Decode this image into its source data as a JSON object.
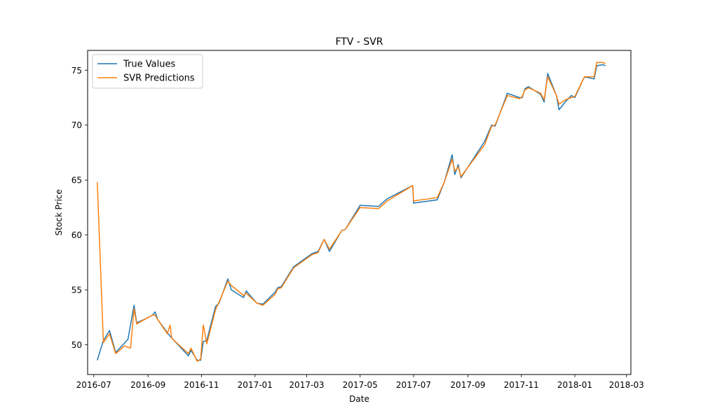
{
  "chart_data": {
    "type": "line",
    "title": "FTV - SVR",
    "xlabel": "Date",
    "ylabel": "Stock Price",
    "xlim": [
      "2016-06-24",
      "2018-03-06"
    ],
    "ylim": [
      47.3,
      76.8
    ],
    "x_ticks": [
      {
        "date": "2016-07-01",
        "label": "2016-07"
      },
      {
        "date": "2016-09-01",
        "label": "2016-09"
      },
      {
        "date": "2016-11-01",
        "label": "2016-11"
      },
      {
        "date": "2017-01-01",
        "label": "2017-01"
      },
      {
        "date": "2017-03-01",
        "label": "2017-03"
      },
      {
        "date": "2017-05-01",
        "label": "2017-05"
      },
      {
        "date": "2017-07-01",
        "label": "2017-07"
      },
      {
        "date": "2017-09-01",
        "label": "2017-09"
      },
      {
        "date": "2017-11-01",
        "label": "2017-11"
      },
      {
        "date": "2018-01-01",
        "label": "2018-01"
      },
      {
        "date": "2018-03-01",
        "label": "2018-03"
      }
    ],
    "y_ticks": [
      50,
      55,
      60,
      65,
      70,
      75
    ],
    "legend": "top-left",
    "grid": false,
    "series": [
      {
        "name": "True Values",
        "color": "#1f77b4",
        "points": [
          [
            "2016-07-05",
            48.6
          ],
          [
            "2016-07-12",
            50.4
          ],
          [
            "2016-07-19",
            51.3
          ],
          [
            "2016-07-26",
            49.3
          ],
          [
            "2016-08-09",
            50.5
          ],
          [
            "2016-08-16",
            53.6
          ],
          [
            "2016-08-19",
            52.0
          ],
          [
            "2016-08-30",
            52.4
          ],
          [
            "2016-09-06",
            52.7
          ],
          [
            "2016-09-09",
            53.0
          ],
          [
            "2016-09-12",
            52.3
          ],
          [
            "2016-09-23",
            51.1
          ],
          [
            "2016-09-26",
            50.8
          ],
          [
            "2016-10-17",
            49.0
          ],
          [
            "2016-10-20",
            49.5
          ],
          [
            "2016-10-27",
            48.6
          ],
          [
            "2016-10-31",
            48.6
          ],
          [
            "2016-11-03",
            50.3
          ],
          [
            "2016-11-07",
            50.4
          ],
          [
            "2016-11-17",
            53.5
          ],
          [
            "2016-11-21",
            53.8
          ],
          [
            "2016-12-01",
            56.0
          ],
          [
            "2016-12-05",
            55.0
          ],
          [
            "2016-12-19",
            54.3
          ],
          [
            "2016-12-22",
            54.9
          ],
          [
            "2017-01-03",
            53.8
          ],
          [
            "2017-01-10",
            53.7
          ],
          [
            "2017-01-24",
            54.8
          ],
          [
            "2017-01-27",
            55.2
          ],
          [
            "2017-01-31",
            55.3
          ],
          [
            "2017-02-14",
            57.1
          ],
          [
            "2017-03-07",
            58.3
          ],
          [
            "2017-03-14",
            58.5
          ],
          [
            "2017-03-21",
            59.6
          ],
          [
            "2017-03-27",
            58.5
          ],
          [
            "2017-04-10",
            60.4
          ],
          [
            "2017-04-14",
            60.5
          ],
          [
            "2017-05-01",
            62.7
          ],
          [
            "2017-05-22",
            62.6
          ],
          [
            "2017-06-01",
            63.3
          ],
          [
            "2017-06-30",
            64.5
          ],
          [
            "2017-07-01",
            62.9
          ],
          [
            "2017-07-28",
            63.2
          ],
          [
            "2017-08-05",
            64.8
          ],
          [
            "2017-08-14",
            67.3
          ],
          [
            "2017-08-17",
            65.5
          ],
          [
            "2017-08-21",
            66.4
          ],
          [
            "2017-08-24",
            65.2
          ],
          [
            "2017-09-20",
            68.5
          ],
          [
            "2017-09-28",
            70.0
          ],
          [
            "2017-10-02",
            69.9
          ],
          [
            "2017-10-16",
            72.9
          ],
          [
            "2017-10-30",
            72.5
          ],
          [
            "2017-11-02",
            72.5
          ],
          [
            "2017-11-05",
            73.3
          ],
          [
            "2017-11-09",
            73.5
          ],
          [
            "2017-11-23",
            72.8
          ],
          [
            "2017-11-27",
            72.1
          ],
          [
            "2017-12-01",
            74.7
          ],
          [
            "2017-12-11",
            72.7
          ],
          [
            "2017-12-14",
            71.4
          ],
          [
            "2017-12-21",
            72.1
          ],
          [
            "2017-12-28",
            72.7
          ],
          [
            "2018-01-01",
            72.5
          ],
          [
            "2018-01-12",
            74.4
          ],
          [
            "2018-01-23",
            74.2
          ],
          [
            "2018-01-26",
            75.4
          ],
          [
            "2018-02-02",
            75.5
          ],
          [
            "2018-02-05",
            75.4
          ]
        ]
      },
      {
        "name": "SVR Predictions",
        "color": "#ff7f0e",
        "points": [
          [
            "2016-07-05",
            64.8
          ],
          [
            "2016-07-12",
            50.2
          ],
          [
            "2016-07-19",
            51.0
          ],
          [
            "2016-07-26",
            49.2
          ],
          [
            "2016-08-05",
            49.9
          ],
          [
            "2016-08-12",
            49.7
          ],
          [
            "2016-08-16",
            53.3
          ],
          [
            "2016-08-19",
            51.9
          ],
          [
            "2016-08-30",
            52.4
          ],
          [
            "2016-09-06",
            52.7
          ],
          [
            "2016-09-09",
            52.7
          ],
          [
            "2016-09-12",
            52.3
          ],
          [
            "2016-09-23",
            51.0
          ],
          [
            "2016-09-26",
            51.8
          ],
          [
            "2016-09-28",
            50.6
          ],
          [
            "2016-10-17",
            49.2
          ],
          [
            "2016-10-20",
            49.7
          ],
          [
            "2016-10-27",
            48.5
          ],
          [
            "2016-10-31",
            48.7
          ],
          [
            "2016-11-03",
            51.8
          ],
          [
            "2016-11-07",
            50.1
          ],
          [
            "2016-11-17",
            53.2
          ],
          [
            "2016-11-21",
            53.9
          ],
          [
            "2016-12-01",
            55.8
          ],
          [
            "2016-12-05",
            55.4
          ],
          [
            "2016-12-19",
            54.5
          ],
          [
            "2016-12-22",
            54.7
          ],
          [
            "2017-01-03",
            53.8
          ],
          [
            "2017-01-10",
            53.6
          ],
          [
            "2017-01-24",
            54.6
          ],
          [
            "2017-01-27",
            55.1
          ],
          [
            "2017-01-31",
            55.2
          ],
          [
            "2017-02-14",
            57.0
          ],
          [
            "2017-03-07",
            58.2
          ],
          [
            "2017-03-14",
            58.4
          ],
          [
            "2017-03-21",
            59.6
          ],
          [
            "2017-03-27",
            58.7
          ],
          [
            "2017-04-10",
            60.4
          ],
          [
            "2017-04-14",
            60.5
          ],
          [
            "2017-05-01",
            62.5
          ],
          [
            "2017-05-22",
            62.4
          ],
          [
            "2017-06-01",
            63.1
          ],
          [
            "2017-06-30",
            64.5
          ],
          [
            "2017-07-01",
            63.1
          ],
          [
            "2017-07-28",
            63.4
          ],
          [
            "2017-08-05",
            64.8
          ],
          [
            "2017-08-14",
            66.9
          ],
          [
            "2017-08-17",
            65.8
          ],
          [
            "2017-08-21",
            66.2
          ],
          [
            "2017-08-24",
            65.3
          ],
          [
            "2017-09-20",
            68.2
          ],
          [
            "2017-09-28",
            69.9
          ],
          [
            "2017-10-02",
            70.0
          ],
          [
            "2017-10-16",
            72.7
          ],
          [
            "2017-10-30",
            72.4
          ],
          [
            "2017-11-02",
            72.6
          ],
          [
            "2017-11-05",
            73.2
          ],
          [
            "2017-11-09",
            73.4
          ],
          [
            "2017-11-23",
            72.9
          ],
          [
            "2017-11-27",
            72.3
          ],
          [
            "2017-12-01",
            74.4
          ],
          [
            "2017-12-11",
            72.7
          ],
          [
            "2017-12-14",
            71.9
          ],
          [
            "2017-12-21",
            72.3
          ],
          [
            "2017-12-28",
            72.5
          ],
          [
            "2018-01-01",
            72.6
          ],
          [
            "2018-01-12",
            74.4
          ],
          [
            "2018-01-23",
            74.4
          ],
          [
            "2018-01-26",
            75.7
          ],
          [
            "2018-02-02",
            75.7
          ],
          [
            "2018-02-05",
            75.6
          ]
        ]
      }
    ]
  }
}
